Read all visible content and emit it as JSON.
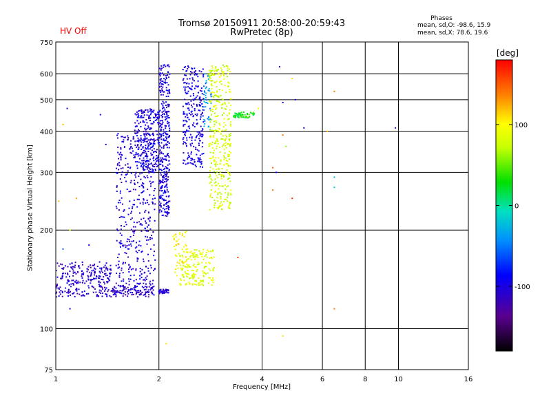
{
  "chart_data": {
    "type": "scatter",
    "title": "Tromsø 20150911 20:58:00-20:59:43",
    "subtitle": "RwPretec (8p)",
    "status": "HV Off",
    "status_color": "#ff0000",
    "stats": {
      "heading": "Phases",
      "line1": "mean, sd,O: -98.6, 15.9",
      "line2": "mean, sd,X:  78.6, 19.6"
    },
    "xlabel": "Frequency [MHz]",
    "ylabel": "Stationary phase Virtual Height [km]",
    "xscale": "log",
    "yscale": "log",
    "xlim": [
      1,
      16
    ],
    "ylim": [
      75,
      750
    ],
    "xticks": [
      1,
      2,
      4,
      6,
      8,
      10,
      16
    ],
    "yticks": [
      75,
      100,
      200,
      300,
      400,
      500,
      600,
      750
    ],
    "xgrid": [
      2,
      4,
      6,
      8,
      10
    ],
    "ygrid": [
      100,
      200,
      300,
      400,
      500,
      600
    ],
    "colorbar": {
      "label": "[deg]",
      "range": [
        -180,
        180
      ],
      "ticks": [
        -100,
        0,
        100
      ],
      "colormap": "rainbow"
    },
    "clusters": [
      {
        "xmin": 1.0,
        "xmax": 1.45,
        "ymin": 125,
        "ymax": 160,
        "phase": -110,
        "n": 260
      },
      {
        "xmin": 1.45,
        "xmax": 1.95,
        "ymin": 125,
        "ymax": 135,
        "phase": -110,
        "n": 120
      },
      {
        "xmin": 1.5,
        "xmax": 1.95,
        "ymin": 135,
        "ymax": 400,
        "phase": -105,
        "n": 420
      },
      {
        "xmin": 1.7,
        "xmax": 2.0,
        "ymin": 300,
        "ymax": 470,
        "phase": -100,
        "n": 260
      },
      {
        "xmin": 2.0,
        "xmax": 2.15,
        "ymin": 220,
        "ymax": 640,
        "phase": -100,
        "n": 360
      },
      {
        "xmin": 2.0,
        "xmax": 2.15,
        "ymin": 128,
        "ymax": 132,
        "phase": -105,
        "n": 40
      },
      {
        "xmin": 2.35,
        "xmax": 2.7,
        "ymin": 310,
        "ymax": 640,
        "phase": -100,
        "n": 260
      },
      {
        "xmin": 2.7,
        "xmax": 2.85,
        "ymin": 400,
        "ymax": 620,
        "phase": -40,
        "n": 50
      },
      {
        "xmin": 2.8,
        "xmax": 3.25,
        "ymin": 230,
        "ymax": 640,
        "phase": 80,
        "n": 380
      },
      {
        "xmin": 3.3,
        "xmax": 3.8,
        "ymin": 440,
        "ymax": 460,
        "phase": 30,
        "n": 60
      },
      {
        "xmin": 2.3,
        "xmax": 2.9,
        "ymin": 135,
        "ymax": 175,
        "phase": 85,
        "n": 180
      },
      {
        "xmin": 2.2,
        "xmax": 2.45,
        "ymin": 145,
        "ymax": 200,
        "phase": 100,
        "n": 50
      }
    ],
    "points": [
      {
        "x": 4.5,
        "y": 630,
        "phase": -110
      },
      {
        "x": 4.9,
        "y": 580,
        "phase": 110
      },
      {
        "x": 4.6,
        "y": 490,
        "phase": -110
      },
      {
        "x": 5.3,
        "y": 410,
        "phase": -110
      },
      {
        "x": 4.6,
        "y": 390,
        "phase": 140
      },
      {
        "x": 4.7,
        "y": 360,
        "phase": 60
      },
      {
        "x": 4.3,
        "y": 310,
        "phase": 150
      },
      {
        "x": 4.4,
        "y": 300,
        "phase": -90
      },
      {
        "x": 4.9,
        "y": 250,
        "phase": 170
      },
      {
        "x": 6.5,
        "y": 530,
        "phase": 140
      },
      {
        "x": 6.5,
        "y": 270,
        "phase": -20
      },
      {
        "x": 6.5,
        "y": 290,
        "phase": -20
      },
      {
        "x": 6.2,
        "y": 400,
        "phase": 120
      },
      {
        "x": 6.5,
        "y": 115,
        "phase": 140
      },
      {
        "x": 9.8,
        "y": 410,
        "phase": -110
      },
      {
        "x": 3.4,
        "y": 165,
        "phase": 160
      },
      {
        "x": 2.1,
        "y": 90,
        "phase": 110
      },
      {
        "x": 4.6,
        "y": 95,
        "phase": 110
      },
      {
        "x": 4.3,
        "y": 265,
        "phase": 140
      },
      {
        "x": 3.9,
        "y": 470,
        "phase": 100
      },
      {
        "x": 5.0,
        "y": 500,
        "phase": -100
      },
      {
        "x": 1.05,
        "y": 175,
        "phase": -60
      },
      {
        "x": 1.1,
        "y": 200,
        "phase": 90
      },
      {
        "x": 1.25,
        "y": 180,
        "phase": -100
      },
      {
        "x": 1.05,
        "y": 420,
        "phase": 120
      },
      {
        "x": 1.08,
        "y": 470,
        "phase": -110
      },
      {
        "x": 1.15,
        "y": 250,
        "phase": 130
      },
      {
        "x": 1.35,
        "y": 450,
        "phase": -100
      },
      {
        "x": 1.4,
        "y": 365,
        "phase": -100
      },
      {
        "x": 1.02,
        "y": 245,
        "phase": 120
      },
      {
        "x": 1.1,
        "y": 115,
        "phase": -100
      }
    ]
  }
}
